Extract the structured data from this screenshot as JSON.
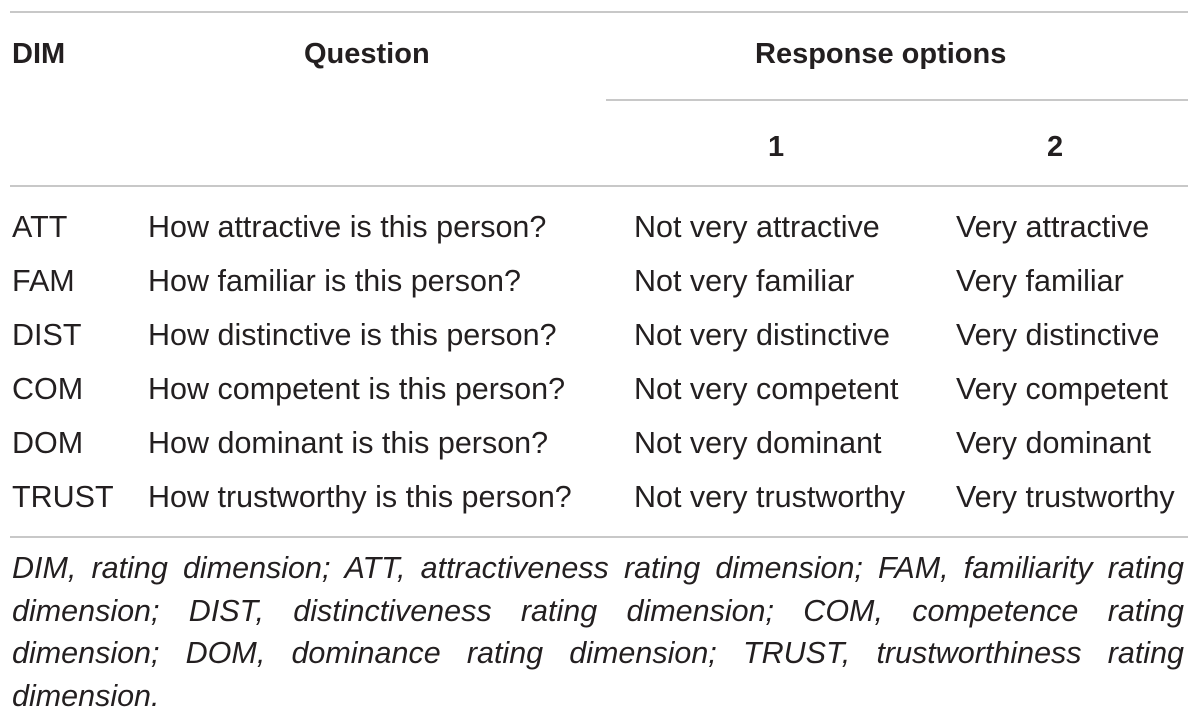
{
  "table": {
    "headers": {
      "dim": "DIM",
      "question": "Question",
      "response_options": "Response options",
      "option_1": "1",
      "option_2": "2"
    },
    "rows": [
      {
        "dim": "ATT",
        "question": "How attractive is this person?",
        "option_1": "Not very attractive",
        "option_2": "Very attractive"
      },
      {
        "dim": "FAM",
        "question": "How familiar is this person?",
        "option_1": "Not very familiar",
        "option_2": "Very familiar"
      },
      {
        "dim": "DIST",
        "question": "How distinctive is this person?",
        "option_1": "Not very distinctive",
        "option_2": "Very distinctive"
      },
      {
        "dim": "COM",
        "question": "How competent is this person?",
        "option_1": "Not very competent",
        "option_2": "Very competent"
      },
      {
        "dim": "DOM",
        "question": "How dominant is this person?",
        "option_1": "Not very dominant",
        "option_2": "Very dominant"
      },
      {
        "dim": "TRUST",
        "question": "How trustworthy is this person?",
        "option_1": "Not very trustworthy",
        "option_2": "Very trustworthy"
      }
    ],
    "footnote": "DIM, rating dimension; ATT, attractiveness rating dimension; FAM, familiarity rating dimension; DIST, distinctiveness rating dimension; COM, competence rating dimension; DOM, dominance rating dimension; TRUST, trustworthiness rating dimension."
  }
}
